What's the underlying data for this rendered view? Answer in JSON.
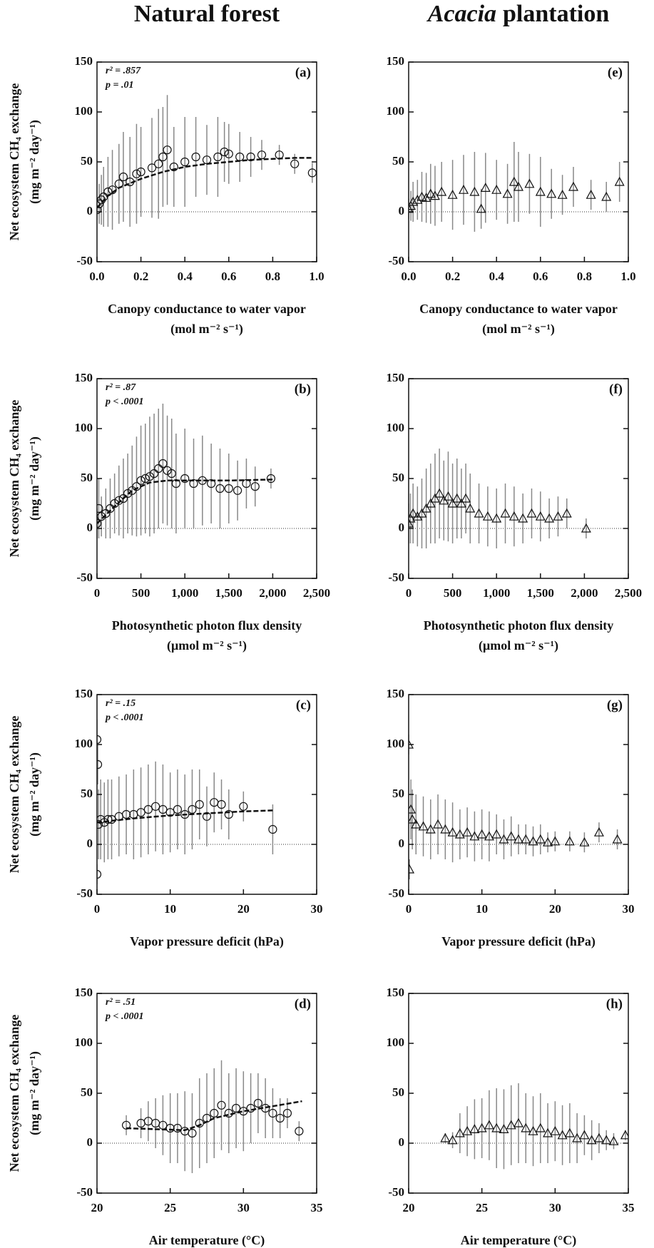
{
  "column_titles": {
    "left": "Natural forest",
    "right_italic": "Acacia",
    "right_rest": "plantation"
  },
  "chart_data": [
    {
      "type": "scatter",
      "panel": "(a)",
      "stats": [
        "r² = .857",
        "p = .01"
      ],
      "marker": "circle",
      "color": "#888888",
      "ylabel": [
        "Net ecosystem CH₄ exchange",
        "(mg m⁻² day⁻¹)"
      ],
      "xlabel": [
        "Canopy conductance to water vapor",
        "(mol m⁻² s⁻¹)"
      ],
      "xlim": [
        0,
        1
      ],
      "ylim": [
        -50,
        150
      ],
      "xticks": [
        {
          "value": 0,
          "label": "0.0"
        },
        0.2,
        0.4,
        0.6,
        0.8,
        {
          "value": 1,
          "label": "1.0"
        }
      ],
      "yticks": [
        -50,
        0,
        50,
        100,
        150
      ],
      "reference_line": 0,
      "x": [
        0,
        0.01,
        0.02,
        0.03,
        0.05,
        0.07,
        0.1,
        0.12,
        0.15,
        0.18,
        0.2,
        0.25,
        0.28,
        0.3,
        0.32,
        0.35,
        0.4,
        0.45,
        0.5,
        0.55,
        0.58,
        0.6,
        0.65,
        0.7,
        0.75,
        0.83,
        0.9,
        0.98
      ],
      "values": [
        2,
        8,
        12,
        15,
        20,
        22,
        28,
        35,
        30,
        38,
        40,
        44,
        48,
        55,
        62,
        45,
        50,
        55,
        52,
        55,
        60,
        58,
        55,
        55,
        57,
        57,
        48,
        39
      ],
      "errors": [
        10,
        20,
        25,
        30,
        35,
        40,
        40,
        45,
        45,
        50,
        45,
        50,
        55,
        50,
        55,
        40,
        45,
        40,
        35,
        40,
        30,
        30,
        25,
        20,
        15,
        10,
        10,
        10
      ],
      "fit_x": [
        0,
        0.05,
        0.1,
        0.2,
        0.3,
        0.4,
        0.5,
        0.6,
        0.7,
        0.8,
        0.9,
        0.98
      ],
      "fit_y": [
        4,
        16,
        24,
        33,
        40,
        45,
        48,
        50,
        52,
        53,
        54,
        54
      ]
    },
    {
      "type": "scatter",
      "panel": "(b)",
      "stats": [
        "r² = .87",
        "p < .0001"
      ],
      "marker": "circle",
      "color": "#888888",
      "ylabel": [
        "Net ecosystem CH₄ exchange",
        "(mg m⁻² day⁻¹)"
      ],
      "xlabel": [
        "Photosynthetic photon flux density",
        "(μmol m⁻² s⁻¹)"
      ],
      "xlim": [
        0,
        2500
      ],
      "ylim": [
        -50,
        150
      ],
      "xticks": [
        0,
        500,
        {
          "value": 1000,
          "label": "1,000"
        },
        {
          "value": 1500,
          "label": "1,500"
        },
        {
          "value": 2000,
          "label": "2,000"
        },
        {
          "value": 2500,
          "label": "2,500"
        }
      ],
      "yticks": [
        -50,
        0,
        50,
        100,
        150
      ],
      "reference_line": 0,
      "x": [
        0,
        20,
        50,
        100,
        150,
        200,
        250,
        300,
        350,
        400,
        450,
        500,
        550,
        600,
        650,
        700,
        750,
        800,
        850,
        900,
        1000,
        1100,
        1200,
        1300,
        1400,
        1500,
        1600,
        1700,
        1800,
        1980
      ],
      "values": [
        5,
        20,
        12,
        15,
        20,
        25,
        28,
        30,
        35,
        38,
        42,
        48,
        50,
        52,
        55,
        60,
        65,
        58,
        55,
        45,
        50,
        45,
        48,
        45,
        40,
        40,
        38,
        45,
        42,
        50
      ],
      "errors": [
        15,
        30,
        20,
        25,
        30,
        30,
        35,
        40,
        40,
        45,
        50,
        55,
        55,
        60,
        60,
        60,
        60,
        55,
        55,
        50,
        50,
        45,
        45,
        40,
        40,
        35,
        30,
        25,
        20,
        10
      ],
      "fit_x": [
        0,
        200,
        400,
        600,
        800,
        1000,
        1500,
        2000
      ],
      "fit_y": [
        5,
        22,
        38,
        46,
        48,
        48,
        48,
        49
      ]
    },
    {
      "type": "scatter",
      "panel": "(c)",
      "stats": [
        "r² = .15",
        "p < .0001"
      ],
      "marker": "circle",
      "color": "#888888",
      "ylabel": [
        "Net ecosystem CH₄ exchange",
        "(mg m⁻² day⁻¹)"
      ],
      "xlabel": [
        "Vapor pressure deficit (hPa)"
      ],
      "xlim": [
        0,
        30
      ],
      "ylim": [
        -50,
        150
      ],
      "xticks": [
        0,
        10,
        20,
        30
      ],
      "yticks": [
        -50,
        0,
        50,
        100,
        150
      ],
      "reference_line": 0,
      "x": [
        0,
        0,
        0.1,
        0.2,
        0.5,
        1,
        1.5,
        2,
        3,
        4,
        5,
        6,
        7,
        8,
        9,
        10,
        11,
        12,
        13,
        14,
        15,
        16,
        17,
        18,
        20,
        24
      ],
      "values": [
        -30,
        105,
        80,
        20,
        25,
        22,
        25,
        25,
        28,
        30,
        30,
        32,
        35,
        38,
        35,
        32,
        35,
        30,
        35,
        40,
        28,
        42,
        40,
        30,
        38,
        15
      ],
      "errors": [
        10,
        20,
        20,
        35,
        40,
        40,
        40,
        40,
        40,
        40,
        45,
        45,
        45,
        45,
        45,
        40,
        40,
        40,
        40,
        35,
        30,
        30,
        25,
        25,
        15,
        25
      ],
      "fit_x": [
        0,
        5,
        10,
        15,
        20,
        24
      ],
      "fit_y": [
        22,
        26,
        29,
        31,
        33,
        34
      ]
    },
    {
      "type": "scatter",
      "panel": "(d)",
      "stats": [
        "r² = .51",
        "p < .0001"
      ],
      "marker": "circle",
      "color": "#888888",
      "ylabel": [
        "Net ecosystem CH₄ exchange",
        "(mg m⁻² day⁻¹)"
      ],
      "xlabel": [
        "Air temperature (°C)"
      ],
      "xlim": [
        20,
        35
      ],
      "ylim": [
        -50,
        150
      ],
      "xticks": [
        20,
        25,
        30,
        35
      ],
      "yticks": [
        -50,
        0,
        50,
        100,
        150
      ],
      "reference_line": 0,
      "x": [
        22,
        23,
        23.5,
        24,
        24.5,
        25,
        25.5,
        26,
        26.5,
        27,
        27.5,
        28,
        28.5,
        29,
        29.5,
        30,
        30.5,
        31,
        31.5,
        32,
        32.5,
        33,
        33.8
      ],
      "values": [
        18,
        20,
        22,
        20,
        18,
        15,
        15,
        12,
        10,
        20,
        25,
        30,
        38,
        30,
        35,
        32,
        35,
        40,
        35,
        30,
        25,
        30,
        12
      ],
      "errors": [
        10,
        15,
        20,
        25,
        30,
        35,
        35,
        40,
        40,
        45,
        45,
        45,
        45,
        40,
        40,
        40,
        35,
        30,
        30,
        25,
        20,
        15,
        10
      ],
      "fit_x": [
        22,
        24,
        26,
        27,
        28,
        30,
        32,
        34
      ],
      "fit_y": [
        15,
        14,
        13,
        18,
        25,
        32,
        37,
        42
      ]
    },
    {
      "type": "scatter",
      "panel": "(e)",
      "marker": "triangle",
      "color": "#888888",
      "xlabel": [
        "Canopy conductance to water vapor",
        "(mol m⁻² s⁻¹)"
      ],
      "xlim": [
        0,
        1
      ],
      "ylim": [
        -50,
        150
      ],
      "xticks": [
        {
          "value": 0,
          "label": "0.0"
        },
        0.2,
        0.4,
        0.6,
        0.8,
        {
          "value": 1,
          "label": "1.0"
        }
      ],
      "yticks": [
        -50,
        0,
        50,
        100,
        150
      ],
      "reference_line": 0,
      "x": [
        0,
        0.01,
        0.02,
        0.04,
        0.06,
        0.08,
        0.1,
        0.12,
        0.15,
        0.2,
        0.25,
        0.3,
        0.33,
        0.35,
        0.4,
        0.45,
        0.48,
        0.5,
        0.55,
        0.6,
        0.65,
        0.7,
        0.75,
        0.83,
        0.9,
        0.96
      ],
      "values": [
        3,
        6,
        10,
        12,
        15,
        14,
        18,
        16,
        20,
        17,
        22,
        20,
        3,
        24,
        22,
        18,
        30,
        25,
        28,
        20,
        18,
        17,
        25,
        17,
        15,
        30
      ],
      "errors": [
        10,
        15,
        20,
        20,
        25,
        25,
        30,
        30,
        30,
        35,
        35,
        40,
        20,
        35,
        30,
        30,
        40,
        35,
        30,
        35,
        25,
        20,
        20,
        15,
        15,
        20
      ]
    },
    {
      "type": "scatter",
      "panel": "(f)",
      "marker": "triangle",
      "color": "#888888",
      "xlabel": [
        "Photosynthetic photon flux density",
        "(μmol m⁻² s⁻¹)"
      ],
      "xlim": [
        0,
        2500
      ],
      "ylim": [
        -50,
        150
      ],
      "xticks": [
        0,
        500,
        {
          "value": 1000,
          "label": "1,000"
        },
        {
          "value": 1500,
          "label": "1,500"
        },
        {
          "value": 2000,
          "label": "2,000"
        },
        {
          "value": 2500,
          "label": "2,500"
        }
      ],
      "yticks": [
        -50,
        0,
        50,
        100,
        150
      ],
      "reference_line": 0,
      "x": [
        0,
        20,
        50,
        100,
        150,
        200,
        250,
        300,
        350,
        400,
        450,
        500,
        550,
        600,
        650,
        700,
        800,
        900,
        1000,
        1100,
        1200,
        1300,
        1400,
        1500,
        1600,
        1700,
        1800,
        2020
      ],
      "values": [
        5,
        10,
        15,
        12,
        15,
        20,
        25,
        30,
        35,
        28,
        32,
        25,
        30,
        25,
        30,
        20,
        15,
        12,
        10,
        15,
        12,
        10,
        15,
        12,
        10,
        12,
        15,
        0
      ],
      "errors": [
        20,
        25,
        30,
        30,
        35,
        40,
        40,
        45,
        45,
        40,
        45,
        40,
        40,
        35,
        35,
        35,
        30,
        30,
        30,
        30,
        30,
        25,
        25,
        25,
        20,
        20,
        15,
        10
      ]
    },
    {
      "type": "scatter",
      "panel": "(g)",
      "marker": "triangle",
      "color": "#888888",
      "xlabel": [
        "Vapor pressure deficit (hPa)"
      ],
      "xlim": [
        0,
        30
      ],
      "ylim": [
        -50,
        150
      ],
      "xticks": [
        0,
        10,
        20,
        30
      ],
      "yticks": [
        -50,
        0,
        50,
        100,
        150
      ],
      "reference_line": 0,
      "x": [
        0,
        0.1,
        0.3,
        0.5,
        1,
        2,
        3,
        4,
        5,
        6,
        7,
        8,
        9,
        10,
        11,
        12,
        13,
        14,
        15,
        16,
        17,
        18,
        19,
        20,
        22,
        24,
        26,
        28.5
      ],
      "values": [
        100,
        -25,
        35,
        25,
        20,
        18,
        15,
        20,
        15,
        12,
        10,
        12,
        8,
        10,
        8,
        10,
        5,
        8,
        5,
        5,
        3,
        5,
        2,
        3,
        3,
        2,
        12,
        5
      ],
      "errors": [
        10,
        10,
        30,
        30,
        30,
        30,
        30,
        30,
        30,
        30,
        25,
        25,
        25,
        25,
        25,
        20,
        20,
        20,
        15,
        15,
        15,
        15,
        10,
        10,
        10,
        10,
        10,
        10
      ]
    },
    {
      "type": "scatter",
      "panel": "(h)",
      "marker": "triangle",
      "color": "#888888",
      "xlabel": [
        "Air temperature (°C)"
      ],
      "xlim": [
        20,
        35
      ],
      "ylim": [
        -50,
        150
      ],
      "xticks": [
        20,
        25,
        30,
        35
      ],
      "yticks": [
        -50,
        0,
        50,
        100,
        150
      ],
      "reference_line": 0,
      "x": [
        22.5,
        23,
        23.5,
        24,
        24.5,
        25,
        25.5,
        26,
        26.5,
        27,
        27.5,
        28,
        28.5,
        29,
        29.5,
        30,
        30.5,
        31,
        31.5,
        32,
        32.5,
        33,
        33.5,
        34,
        34.8
      ],
      "values": [
        5,
        3,
        10,
        12,
        14,
        15,
        18,
        15,
        14,
        18,
        20,
        15,
        12,
        15,
        10,
        12,
        8,
        10,
        5,
        8,
        3,
        5,
        3,
        2,
        8
      ],
      "errors": [
        5,
        8,
        20,
        25,
        30,
        30,
        35,
        40,
        40,
        40,
        40,
        35,
        35,
        35,
        30,
        30,
        30,
        30,
        25,
        20,
        20,
        15,
        10,
        8,
        5
      ]
    }
  ]
}
